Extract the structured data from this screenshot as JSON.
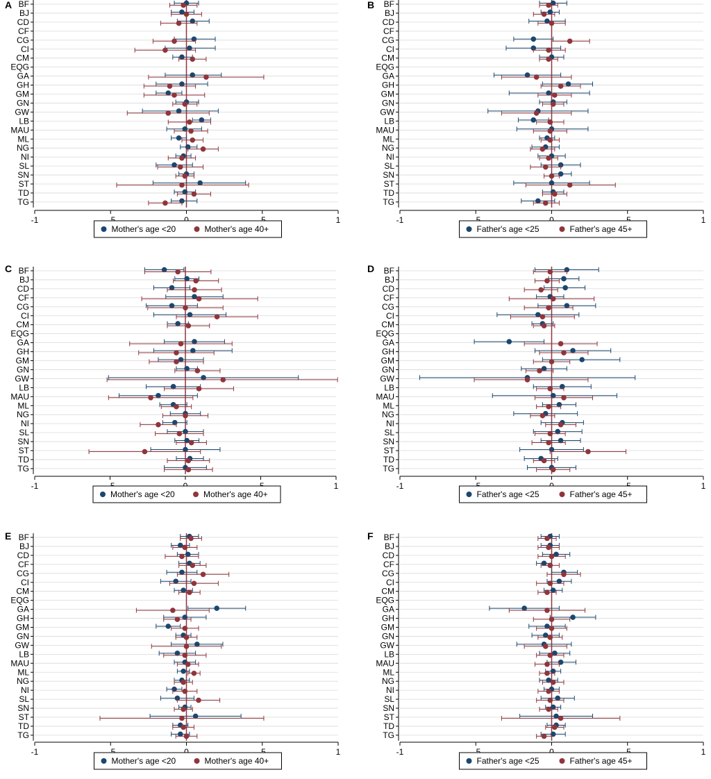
{
  "colors": {
    "blue": "#1a476f",
    "red": "#90353b",
    "axis": "#000000",
    "grid": "#d9d9d9",
    "zero_line": "#90353b"
  },
  "countries": [
    "BF",
    "BJ",
    "CD",
    "CF",
    "CG",
    "CI",
    "CM",
    "EQG",
    "GA",
    "GH",
    "GM",
    "GN",
    "GW",
    "LB",
    "MAU",
    "ML",
    "NG",
    "NI",
    "SL",
    "SN",
    "ST",
    "TD",
    "TG"
  ],
  "chart_data": [
    {
      "panel": "A",
      "type": "scatter",
      "xlim": [
        -1,
        1
      ],
      "xticks": [
        "-1",
        "-.5",
        "0",
        ".5",
        "1"
      ],
      "legend": [
        "Mother's age <20",
        "Mother's age 40+"
      ],
      "series": [
        {
          "name": "Mother's age <20",
          "color": "#1a476f",
          "est": [
            0.0,
            -0.03,
            0.04,
            null,
            0.05,
            0.02,
            -0.03,
            null,
            0.04,
            -0.03,
            -0.12,
            0.0,
            -0.05,
            0.1,
            -0.01,
            -0.05,
            0.01,
            -0.02,
            -0.08,
            0.0,
            0.09,
            -0.01,
            -0.03
          ],
          "lo": [
            -0.08,
            -0.1,
            -0.06,
            null,
            -0.08,
            -0.14,
            -0.09,
            null,
            -0.14,
            -0.2,
            -0.2,
            -0.07,
            -0.29,
            0.04,
            -0.13,
            -0.1,
            -0.04,
            -0.07,
            -0.2,
            -0.05,
            -0.22,
            -0.08,
            -0.1
          ],
          "hi": [
            0.08,
            0.05,
            0.15,
            null,
            0.19,
            0.19,
            0.04,
            null,
            0.23,
            0.14,
            -0.03,
            0.08,
            0.21,
            0.16,
            0.1,
            0.0,
            0.07,
            0.03,
            0.04,
            0.05,
            0.39,
            0.06,
            0.07
          ]
        },
        {
          "name": "Mother's age 40+",
          "color": "#90353b",
          "est": [
            -0.02,
            0.0,
            -0.05,
            null,
            -0.08,
            -0.14,
            0.04,
            null,
            0.13,
            -0.11,
            -0.08,
            -0.01,
            -0.12,
            0.02,
            0.03,
            0.04,
            0.11,
            -0.03,
            -0.04,
            -0.01,
            -0.03,
            0.05,
            -0.14
          ],
          "lo": [
            -0.11,
            -0.1,
            -0.17,
            null,
            -0.22,
            -0.34,
            -0.05,
            null,
            -0.25,
            -0.28,
            -0.28,
            -0.09,
            -0.39,
            -0.12,
            -0.08,
            -0.03,
            0.01,
            -0.12,
            -0.19,
            -0.07,
            -0.46,
            -0.06,
            -0.25
          ],
          "hi": [
            0.07,
            0.1,
            0.07,
            null,
            0.06,
            0.06,
            0.13,
            null,
            0.51,
            0.06,
            0.12,
            0.07,
            0.15,
            0.16,
            0.14,
            0.11,
            0.21,
            0.06,
            0.11,
            0.05,
            0.41,
            0.16,
            -0.03
          ]
        }
      ]
    },
    {
      "panel": "B",
      "type": "scatter",
      "xlim": [
        -1,
        1
      ],
      "xticks": [
        "-1",
        "-.5",
        "0",
        ".5",
        "1"
      ],
      "legend": [
        "Father's age <25",
        "Father's age 45+"
      ],
      "series": [
        {
          "name": "Father's age <25",
          "color": "#1a476f",
          "est": [
            0.01,
            -0.01,
            -0.03,
            null,
            -0.12,
            -0.12,
            0.0,
            null,
            -0.16,
            0.11,
            -0.02,
            0.01,
            -0.09,
            -0.12,
            0.0,
            -0.03,
            -0.04,
            0.0,
            0.06,
            0.06,
            0.0,
            0.01,
            -0.09
          ],
          "lo": [
            -0.08,
            -0.07,
            -0.15,
            null,
            -0.25,
            -0.3,
            -0.08,
            null,
            -0.38,
            -0.06,
            -0.28,
            -0.08,
            -0.42,
            -0.22,
            -0.23,
            -0.08,
            -0.13,
            -0.09,
            -0.07,
            0.0,
            -0.25,
            -0.06,
            -0.2
          ],
          "hi": [
            0.1,
            0.05,
            0.09,
            null,
            0.01,
            0.06,
            0.08,
            null,
            0.06,
            0.27,
            0.25,
            0.1,
            0.24,
            -0.02,
            0.24,
            0.02,
            0.05,
            0.09,
            0.19,
            0.13,
            0.25,
            0.08,
            0.02
          ]
        },
        {
          "name": "Father's age 45+",
          "color": "#90353b",
          "est": [
            -0.02,
            -0.05,
            0.0,
            null,
            0.12,
            -0.02,
            -0.02,
            null,
            -0.1,
            0.06,
            0.02,
            0.01,
            -0.1,
            -0.01,
            -0.01,
            -0.01,
            -0.06,
            -0.02,
            -0.04,
            0.0,
            0.12,
            0.02,
            -0.04
          ],
          "lo": [
            -0.08,
            -0.12,
            -0.09,
            null,
            0.0,
            -0.12,
            -0.08,
            null,
            -0.33,
            -0.07,
            -0.09,
            -0.06,
            -0.33,
            -0.1,
            -0.12,
            -0.07,
            -0.14,
            -0.08,
            -0.14,
            -0.05,
            -0.17,
            -0.06,
            -0.12
          ],
          "hi": [
            0.04,
            0.02,
            0.09,
            null,
            0.25,
            0.09,
            0.04,
            null,
            0.13,
            0.19,
            0.13,
            0.08,
            0.13,
            0.08,
            0.1,
            0.05,
            0.02,
            0.04,
            0.06,
            0.05,
            0.42,
            0.1,
            0.05
          ]
        }
      ]
    },
    {
      "panel": "C",
      "type": "scatter",
      "xlim": [
        -1,
        1
      ],
      "xticks": [
        "-1",
        "-.5",
        "0",
        ".5",
        "1"
      ],
      "legend": [
        "Mother's age <20",
        "Mother's age 40+"
      ],
      "series": [
        {
          "name": "Mother's age <20",
          "color": "#1a476f",
          "est": [
            -0.14,
            0.01,
            -0.09,
            0.06,
            -0.09,
            0.03,
            -0.05,
            null,
            0.06,
            0.05,
            -0.03,
            0.01,
            0.12,
            -0.08,
            -0.18,
            -0.08,
            0.0,
            -0.07,
            0.0,
            0.01,
            0.0,
            0.03,
            0.0
          ],
          "lo": [
            -0.27,
            -0.07,
            -0.21,
            -0.13,
            -0.26,
            -0.21,
            -0.12,
            null,
            -0.14,
            -0.21,
            -0.18,
            -0.06,
            -0.51,
            -0.26,
            -0.44,
            -0.17,
            -0.1,
            -0.15,
            -0.12,
            -0.07,
            -0.23,
            -0.06,
            -0.14
          ],
          "hi": [
            -0.01,
            0.09,
            0.03,
            0.25,
            0.08,
            0.27,
            0.02,
            null,
            0.26,
            0.31,
            0.12,
            0.08,
            0.75,
            0.1,
            0.08,
            0.01,
            0.1,
            0.01,
            0.12,
            0.09,
            0.23,
            0.12,
            0.14
          ]
        },
        {
          "name": "Mother's age 40+",
          "color": "#90353b",
          "est": [
            -0.05,
            0.07,
            0.06,
            0.09,
            0.0,
            0.21,
            0.02,
            null,
            -0.03,
            -0.06,
            -0.06,
            0.08,
            0.25,
            0.09,
            -0.23,
            -0.06,
            0.0,
            -0.18,
            -0.04,
            0.04,
            -0.27,
            0.02,
            0.02
          ],
          "lo": [
            -0.27,
            -0.08,
            -0.12,
            -0.29,
            -0.25,
            -0.06,
            -0.12,
            null,
            -0.37,
            -0.31,
            -0.24,
            -0.07,
            -0.52,
            -0.14,
            -0.51,
            -0.16,
            -0.15,
            -0.3,
            -0.2,
            -0.06,
            -0.64,
            -0.12,
            -0.14
          ],
          "hi": [
            0.17,
            0.22,
            0.24,
            0.48,
            0.25,
            0.48,
            0.16,
            null,
            0.31,
            0.19,
            0.12,
            0.23,
            1.01,
            0.32,
            0.05,
            0.04,
            0.15,
            -0.06,
            0.12,
            0.14,
            0.1,
            0.16,
            0.18
          ]
        }
      ]
    },
    {
      "panel": "D",
      "type": "scatter",
      "xlim": [
        -1,
        1
      ],
      "xticks": [
        "-1",
        "-.5",
        "0",
        ".5",
        "1"
      ],
      "legend": [
        "Father's age <25",
        "Father's age 45+"
      ],
      "series": [
        {
          "name": "Father's age <25",
          "color": "#1a476f",
          "est": [
            0.1,
            0.08,
            0.09,
            -0.01,
            0.1,
            -0.09,
            -0.06,
            null,
            -0.28,
            0.14,
            0.2,
            -0.05,
            -0.16,
            0.07,
            0.01,
            0.05,
            -0.04,
            0.07,
            0.04,
            0.06,
            0.0,
            -0.07,
            0.0
          ],
          "lo": [
            -0.11,
            -0.02,
            -0.05,
            -0.1,
            -0.09,
            -0.36,
            -0.13,
            null,
            -0.51,
            -0.11,
            -0.06,
            -0.2,
            -0.87,
            -0.12,
            -0.39,
            -0.06,
            -0.25,
            -0.07,
            -0.12,
            -0.07,
            -0.21,
            -0.18,
            -0.16
          ],
          "hi": [
            0.31,
            0.18,
            0.22,
            0.08,
            0.29,
            0.18,
            0.01,
            null,
            -0.05,
            0.39,
            0.45,
            0.1,
            0.55,
            0.26,
            0.43,
            0.16,
            0.17,
            0.21,
            0.2,
            0.19,
            0.21,
            0.04,
            0.16
          ]
        },
        {
          "name": "Father's age 45+",
          "color": "#90353b",
          "est": [
            -0.01,
            -0.03,
            -0.07,
            0.01,
            -0.02,
            -0.06,
            -0.05,
            null,
            0.06,
            0.08,
            0.0,
            -0.08,
            -0.16,
            -0.01,
            0.08,
            -0.02,
            -0.06,
            0.06,
            -0.01,
            -0.02,
            0.24,
            -0.05,
            0.01
          ],
          "lo": [
            -0.12,
            -0.11,
            -0.18,
            -0.28,
            -0.18,
            -0.27,
            -0.12,
            null,
            -0.18,
            -0.08,
            -0.12,
            -0.17,
            -0.51,
            -0.1,
            -0.11,
            -0.1,
            -0.14,
            -0.04,
            -0.11,
            -0.13,
            -0.01,
            -0.12,
            -0.1
          ],
          "hi": [
            0.1,
            0.05,
            0.04,
            0.28,
            0.14,
            0.15,
            0.02,
            null,
            0.3,
            0.24,
            0.12,
            0.01,
            0.24,
            0.08,
            0.27,
            0.06,
            0.02,
            0.16,
            0.09,
            0.09,
            0.49,
            0.02,
            0.12
          ]
        }
      ]
    },
    {
      "panel": "E",
      "type": "scatter",
      "xlim": [
        -1,
        1
      ],
      "xticks": [
        "-1",
        "-.5",
        "0",
        ".5",
        "1"
      ],
      "legend": [
        "Mother's age <20",
        "Mother's age 40+"
      ],
      "series": [
        {
          "name": "Mother's age <20",
          "color": "#1a476f",
          "est": [
            0.02,
            -0.04,
            0.01,
            0.02,
            -0.03,
            -0.07,
            -0.02,
            null,
            0.2,
            -0.01,
            -0.12,
            -0.02,
            0.07,
            -0.06,
            -0.01,
            -0.02,
            -0.03,
            -0.08,
            -0.06,
            -0.01,
            0.06,
            -0.04,
            -0.04
          ],
          "lo": [
            -0.04,
            -0.1,
            -0.06,
            -0.05,
            -0.13,
            -0.17,
            -0.08,
            null,
            0.01,
            -0.15,
            -0.2,
            -0.07,
            -0.1,
            -0.18,
            -0.08,
            -0.06,
            -0.08,
            -0.13,
            -0.17,
            -0.05,
            -0.24,
            -0.09,
            -0.1
          ],
          "hi": [
            0.08,
            0.02,
            0.08,
            0.09,
            0.07,
            0.03,
            0.04,
            null,
            0.39,
            0.13,
            -0.04,
            0.03,
            0.24,
            0.06,
            0.06,
            0.02,
            0.02,
            -0.03,
            0.05,
            0.03,
            0.36,
            0.01,
            0.02
          ]
        },
        {
          "name": "Mother's age 40+",
          "color": "#90353b",
          "est": [
            0.03,
            -0.01,
            -0.03,
            0.04,
            0.11,
            0.05,
            0.02,
            null,
            -0.09,
            -0.06,
            -0.01,
            0.0,
            0.0,
            -0.01,
            0.01,
            0.05,
            -0.02,
            -0.01,
            0.08,
            -0.02,
            -0.03,
            -0.02,
            0.0
          ],
          "lo": [
            -0.04,
            -0.09,
            -0.14,
            -0.05,
            -0.06,
            -0.11,
            -0.05,
            null,
            -0.33,
            -0.15,
            -0.1,
            -0.07,
            -0.23,
            -0.15,
            -0.06,
            0.01,
            -0.08,
            -0.09,
            -0.06,
            -0.08,
            -0.57,
            -0.09,
            -0.07
          ],
          "hi": [
            0.1,
            0.07,
            0.08,
            0.13,
            0.28,
            0.21,
            0.09,
            null,
            0.15,
            0.03,
            0.08,
            0.07,
            0.23,
            0.13,
            0.08,
            0.09,
            0.04,
            0.07,
            0.22,
            0.04,
            0.51,
            0.05,
            0.07
          ]
        }
      ]
    },
    {
      "panel": "F",
      "type": "scatter",
      "xlim": [
        -1,
        1
      ],
      "xticks": [
        "-1",
        "-.5",
        "0",
        ".5",
        "1"
      ],
      "legend": [
        "Father's age <25",
        "Father's age 45+"
      ],
      "series": [
        {
          "name": "Father's age <25",
          "color": "#1a476f",
          "est": [
            -0.01,
            -0.01,
            0.03,
            -0.05,
            0.08,
            0.05,
            0.01,
            null,
            -0.18,
            0.14,
            -0.03,
            -0.04,
            -0.05,
            0.02,
            0.06,
            0.01,
            -0.02,
            0.0,
            0.04,
            0.01,
            0.03,
            0.03,
            0.01
          ],
          "lo": [
            -0.07,
            -0.07,
            -0.06,
            -0.1,
            0.0,
            -0.03,
            -0.05,
            null,
            -0.41,
            -0.01,
            -0.15,
            -0.13,
            -0.23,
            -0.08,
            -0.03,
            -0.04,
            -0.08,
            -0.05,
            -0.07,
            -0.04,
            -0.21,
            -0.03,
            -0.07
          ],
          "hi": [
            0.05,
            0.05,
            0.12,
            0.0,
            0.17,
            0.13,
            0.07,
            null,
            0.05,
            0.29,
            0.09,
            0.05,
            0.13,
            0.12,
            0.16,
            0.06,
            0.04,
            0.05,
            0.15,
            0.06,
            0.27,
            0.09,
            0.09
          ]
        },
        {
          "name": "Father's age 45+",
          "color": "#90353b",
          "est": [
            -0.03,
            -0.02,
            0.0,
            -0.01,
            0.08,
            -0.01,
            -0.03,
            null,
            -0.03,
            0.0,
            0.0,
            -0.01,
            -0.04,
            -0.01,
            -0.03,
            -0.03,
            0.01,
            -0.02,
            -0.01,
            -0.02,
            0.06,
            0.02,
            -0.05
          ],
          "lo": [
            -0.09,
            -0.09,
            -0.09,
            -0.07,
            -0.03,
            -0.1,
            -0.09,
            null,
            -0.28,
            -0.12,
            -0.1,
            -0.09,
            -0.18,
            -0.1,
            -0.11,
            -0.08,
            -0.06,
            -0.09,
            -0.1,
            -0.08,
            -0.33,
            -0.04,
            -0.1
          ],
          "hi": [
            0.03,
            0.05,
            0.09,
            0.05,
            0.19,
            0.08,
            0.03,
            null,
            0.22,
            0.12,
            0.1,
            0.07,
            0.1,
            0.08,
            0.05,
            0.02,
            0.08,
            0.05,
            0.08,
            0.04,
            0.45,
            0.08,
            0.0
          ]
        }
      ]
    }
  ]
}
